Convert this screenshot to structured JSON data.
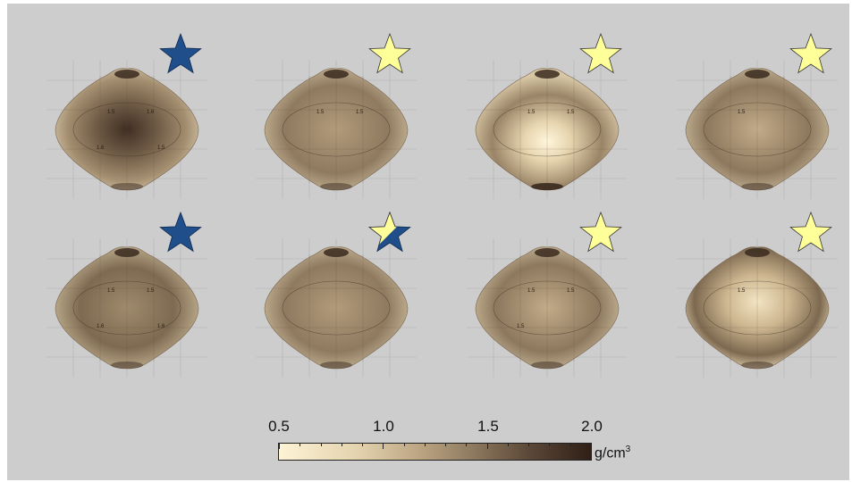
{
  "colorbar": {
    "ticks": [
      "0.5",
      "1.0",
      "1.5",
      "2.0"
    ],
    "unit_base": "g/cm",
    "unit_exp": "3",
    "min": 0.5,
    "max": 2.0
  },
  "colors": {
    "background": "#cdcdcd",
    "star_blue": "#1f4e8a",
    "star_yellow": "#ffff99",
    "density_low": "#fdf3d5",
    "density_high": "#2f1f16"
  },
  "panels": [
    {
      "id": "r1c1",
      "star": "blue",
      "contour_labels": [
        "1.5",
        "1.6",
        "1.6",
        "1.5"
      ]
    },
    {
      "id": "r1c2",
      "star": "yellow",
      "contour_labels": [
        "1.5",
        "1.5"
      ]
    },
    {
      "id": "r1c3",
      "star": "yellow",
      "contour_labels": [
        "1.5",
        "1.5"
      ]
    },
    {
      "id": "r1c4",
      "star": "yellow",
      "contour_labels": [
        "1.5"
      ]
    },
    {
      "id": "r2c1",
      "star": "blue",
      "contour_labels": [
        "1.5",
        "1.5",
        "1.6",
        "1.6"
      ]
    },
    {
      "id": "r2c2",
      "star": "half",
      "contour_labels": []
    },
    {
      "id": "r2c3",
      "star": "yellow",
      "contour_labels": [
        "1.5",
        "1.5",
        "1.5"
      ]
    },
    {
      "id": "r2c4",
      "star": "yellow",
      "contour_labels": [
        "1.5"
      ]
    }
  ]
}
